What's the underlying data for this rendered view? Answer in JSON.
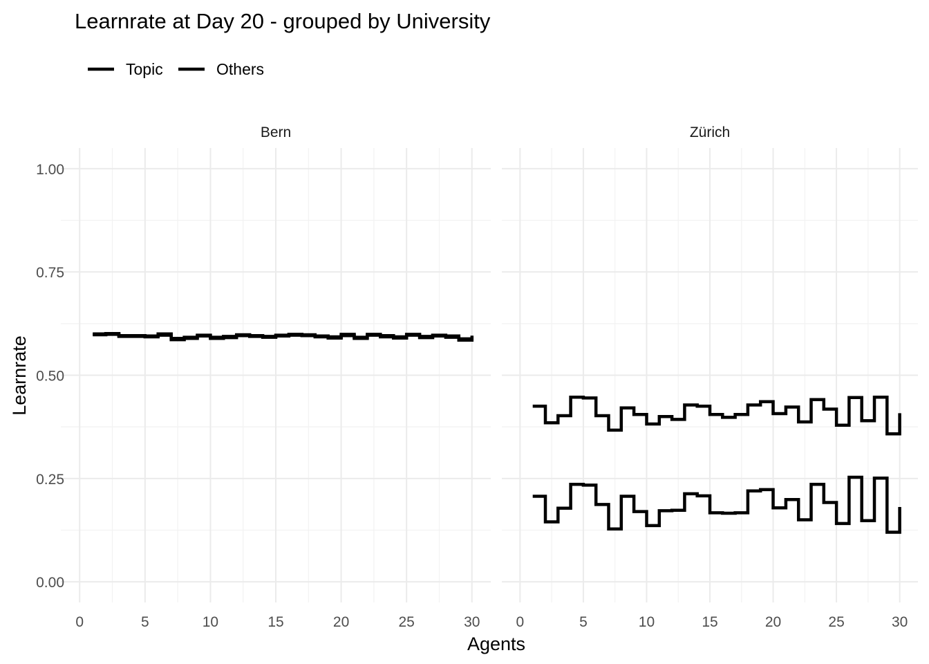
{
  "chart_data": {
    "type": "line",
    "subtype": "step",
    "title": "Learnrate at Day 20 - grouped by University",
    "xlabel": "Agents",
    "ylabel": "Learnrate",
    "xlim": [
      0,
      30
    ],
    "ylim": [
      0,
      1
    ],
    "x_ticks": [
      0,
      5,
      10,
      15,
      20,
      25,
      30
    ],
    "y_ticks": [
      0.0,
      0.25,
      0.5,
      0.75,
      1.0
    ],
    "x_tick_labels": [
      "0",
      "5",
      "10",
      "15",
      "20",
      "25",
      "30"
    ],
    "y_tick_labels": [
      "0.00",
      "0.25",
      "0.50",
      "0.75",
      "1.00"
    ],
    "grid": true,
    "legend": {
      "position": "top-left",
      "entries": [
        "Topic",
        "Others"
      ]
    },
    "x": [
      1,
      2,
      3,
      4,
      5,
      6,
      7,
      8,
      9,
      10,
      11,
      12,
      13,
      14,
      15,
      16,
      17,
      18,
      19,
      20,
      21,
      22,
      23,
      24,
      25,
      26,
      27,
      28,
      29,
      30
    ],
    "panels": [
      {
        "name": "Bern",
        "series": [
          {
            "name": "Topic",
            "values": [
              0.6,
              0.601,
              0.596,
              0.596,
              0.595,
              0.6,
              0.589,
              0.592,
              0.597,
              0.592,
              0.594,
              0.598,
              0.596,
              0.594,
              0.597,
              0.599,
              0.598,
              0.595,
              0.593,
              0.599,
              0.592,
              0.599,
              0.596,
              0.593,
              0.599,
              0.594,
              0.597,
              0.595,
              0.588,
              0.596
            ]
          },
          {
            "name": "Others",
            "values": [
              0.598,
              0.599,
              0.594,
              0.594,
              0.593,
              0.597,
              0.586,
              0.589,
              0.595,
              0.589,
              0.591,
              0.596,
              0.594,
              0.592,
              0.595,
              0.597,
              0.596,
              0.593,
              0.59,
              0.596,
              0.589,
              0.597,
              0.593,
              0.59,
              0.597,
              0.591,
              0.595,
              0.592,
              0.585,
              0.593
            ]
          }
        ]
      },
      {
        "name": "Zürich",
        "series": [
          {
            "name": "Topic",
            "values": [
              0.425,
              0.385,
              0.402,
              0.447,
              0.445,
              0.402,
              0.367,
              0.421,
              0.405,
              0.382,
              0.4,
              0.393,
              0.428,
              0.425,
              0.405,
              0.398,
              0.405,
              0.428,
              0.436,
              0.407,
              0.423,
              0.387,
              0.441,
              0.418,
              0.379,
              0.446,
              0.39,
              0.447,
              0.358,
              0.408
            ]
          },
          {
            "name": "Others",
            "values": [
              0.207,
              0.145,
              0.178,
              0.236,
              0.234,
              0.187,
              0.128,
              0.207,
              0.17,
              0.136,
              0.172,
              0.173,
              0.213,
              0.208,
              0.167,
              0.166,
              0.167,
              0.22,
              0.223,
              0.179,
              0.199,
              0.15,
              0.236,
              0.192,
              0.141,
              0.253,
              0.148,
              0.251,
              0.12,
              0.181
            ]
          }
        ]
      }
    ]
  }
}
